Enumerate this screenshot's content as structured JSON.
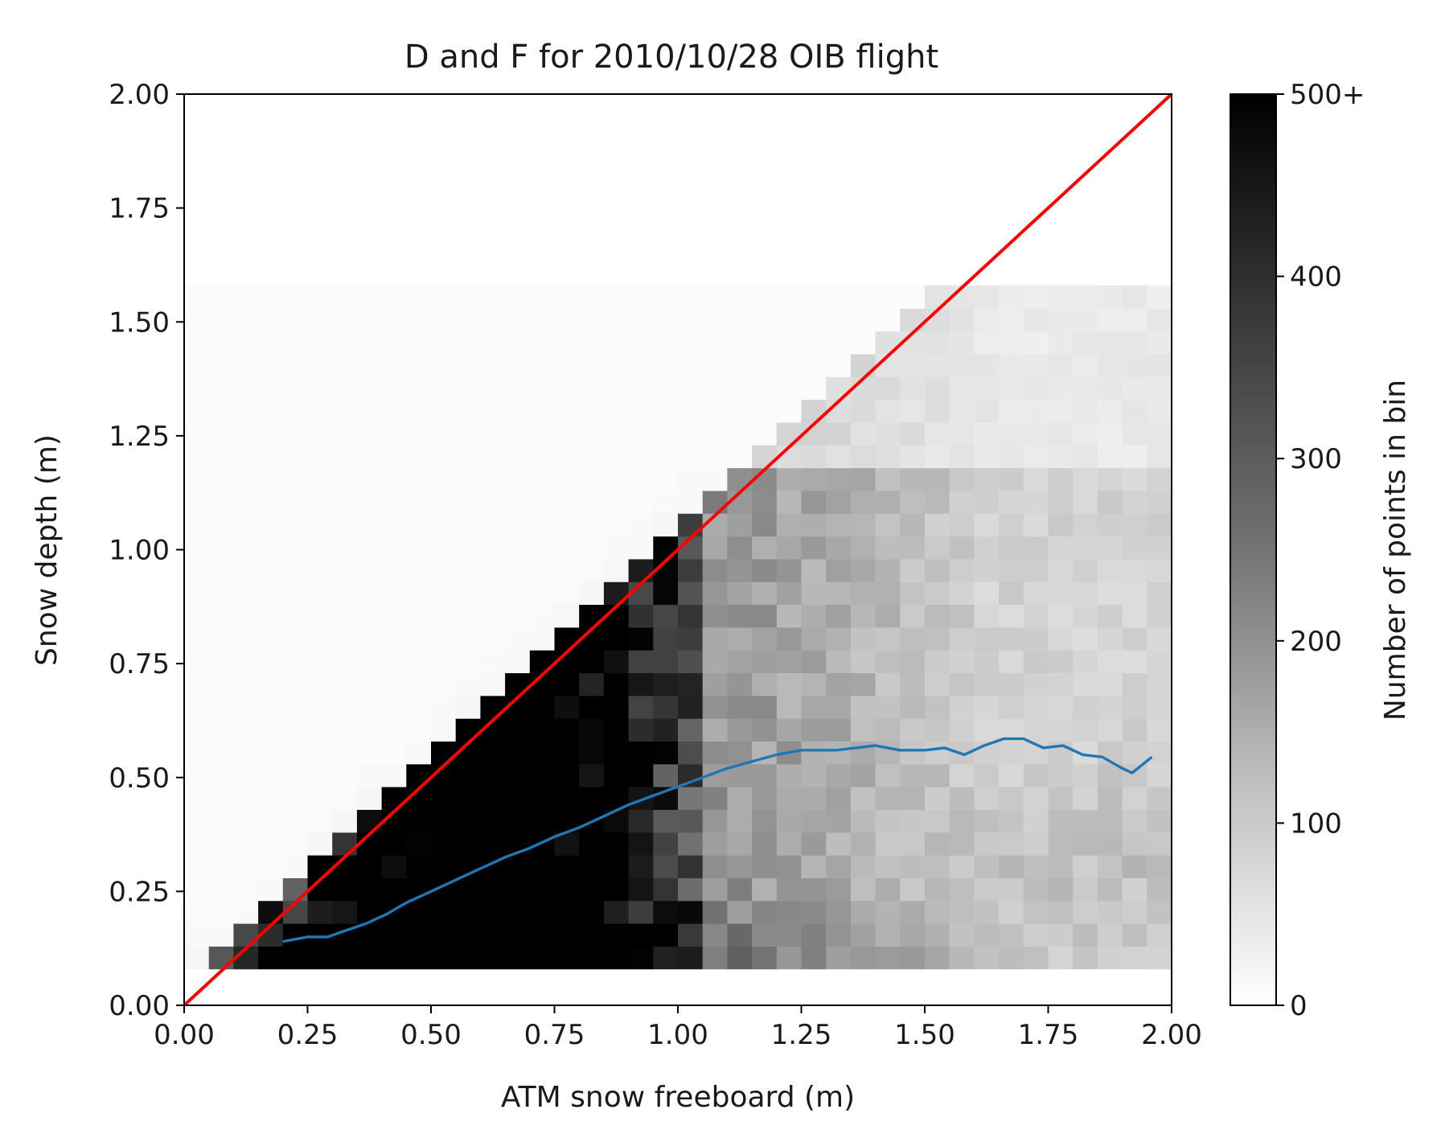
{
  "chart_data": {
    "type": "heatmap",
    "title": "D and F for 2010/10/28 OIB flight",
    "xlabel": "ATM snow freeboard (m)",
    "ylabel": "Snow depth (m)",
    "xlim": [
      0,
      2
    ],
    "ylim": [
      0,
      2
    ],
    "x_ticks": [
      "0.00",
      "0.25",
      "0.50",
      "0.75",
      "1.00",
      "1.25",
      "1.50",
      "1.75",
      "2.00"
    ],
    "y_ticks": [
      "0.00",
      "0.25",
      "0.50",
      "0.75",
      "1.00",
      "1.25",
      "1.50",
      "1.75",
      "2.00"
    ],
    "grid": false,
    "heatmap": {
      "bin_width": 0.05,
      "x_bin_range": [
        0.0,
        2.0
      ],
      "y_bin_range": [
        0.08,
        1.58
      ],
      "colormap": "gray_r",
      "vmin": 0,
      "vmax": 500,
      "note_density": "counts concentrated between the red 1:1 line and the blue median curve; saturated (500+) for freeboard 0.35-0.65 m and depth 0.1-0.45 m"
    },
    "series": [
      {
        "type": "line",
        "color": "#ff0000",
        "x": [
          0,
          2
        ],
        "y": [
          0,
          2
        ]
      },
      {
        "type": "line",
        "color": "#1f77b4",
        "x": [
          0.2,
          0.25,
          0.29,
          0.33,
          0.37,
          0.41,
          0.45,
          0.5,
          0.55,
          0.6,
          0.65,
          0.7,
          0.75,
          0.8,
          0.85,
          0.9,
          0.95,
          1.0,
          1.05,
          1.1,
          1.15,
          1.2,
          1.25,
          1.28,
          1.32,
          1.36,
          1.4,
          1.45,
          1.5,
          1.54,
          1.58,
          1.62,
          1.66,
          1.7,
          1.74,
          1.78,
          1.82,
          1.86,
          1.9,
          1.92,
          1.96
        ],
        "y": [
          0.14,
          0.15,
          0.15,
          0.165,
          0.18,
          0.2,
          0.225,
          0.25,
          0.275,
          0.3,
          0.325,
          0.345,
          0.37,
          0.39,
          0.415,
          0.44,
          0.46,
          0.48,
          0.5,
          0.52,
          0.535,
          0.55,
          0.56,
          0.56,
          0.56,
          0.565,
          0.57,
          0.56,
          0.56,
          0.565,
          0.55,
          0.57,
          0.585,
          0.585,
          0.565,
          0.57,
          0.55,
          0.545,
          0.52,
          0.51,
          0.545
        ]
      }
    ],
    "colorbar": {
      "label": "Number of points in bin",
      "ticks": [
        "0",
        "100",
        "200",
        "300",
        "400",
        "500+"
      ],
      "range": [
        0,
        500
      ]
    }
  }
}
